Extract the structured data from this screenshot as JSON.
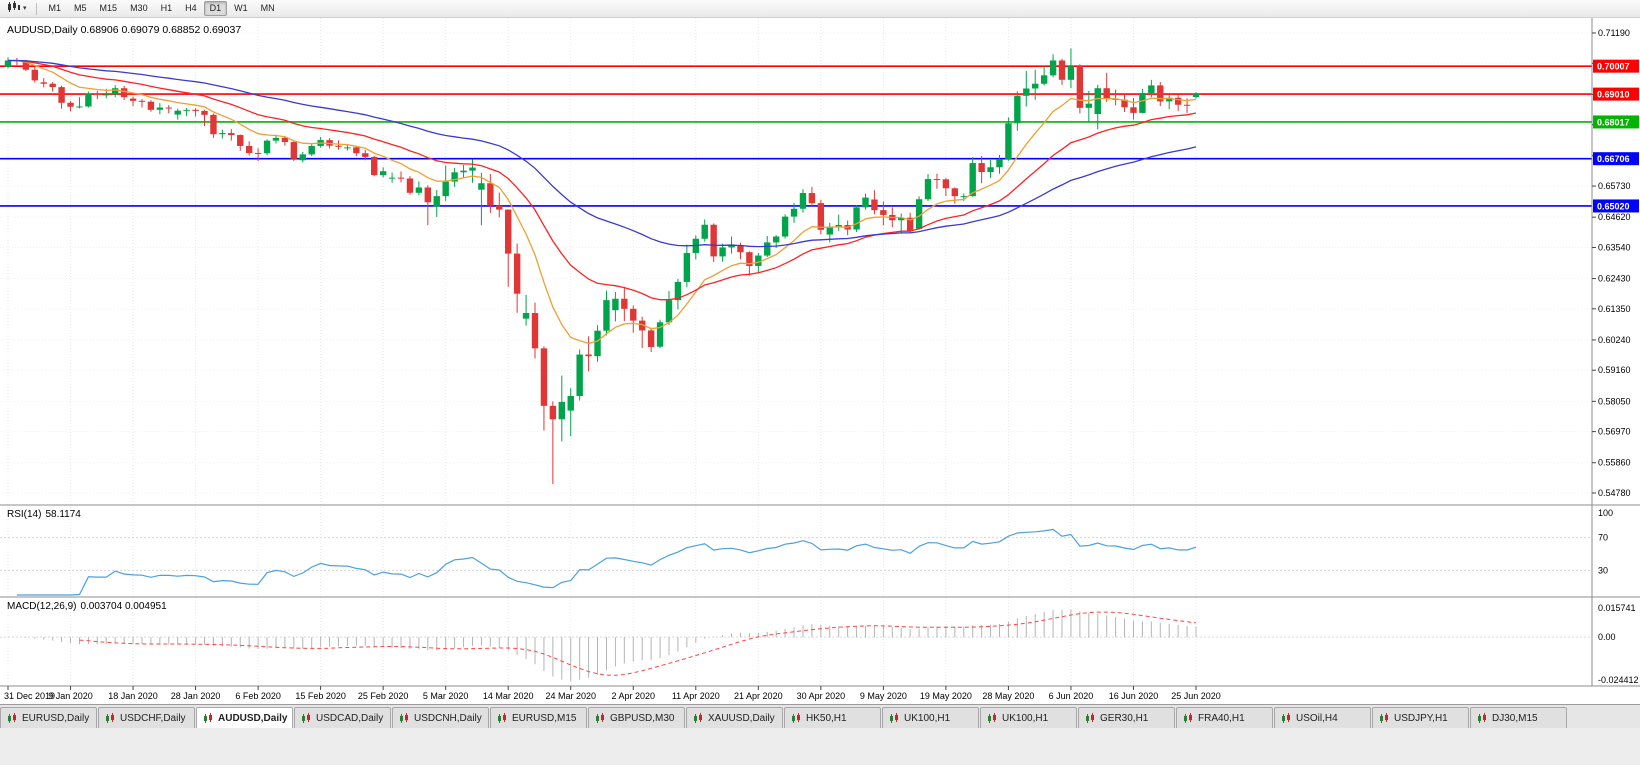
{
  "toolbar": {
    "timeframes": [
      "M1",
      "M5",
      "M15",
      "M30",
      "H1",
      "H4",
      "D1",
      "W1",
      "MN"
    ],
    "active_timeframe": "D1"
  },
  "chart_header": {
    "symbol": "AUDUSD,Daily",
    "ohlc": "0.68906 0.69079 0.68852 0.69037"
  },
  "indicators": {
    "rsi": {
      "name": "RSI(14)",
      "value": "58.1174",
      "period": 14,
      "axis_labels": [
        "100",
        "70",
        "30"
      ],
      "levels": [
        70,
        30
      ],
      "color": "#4ba1df"
    },
    "macd": {
      "name": "MACD(12,26,9)",
      "value": "0.003704 0.004951",
      "fast": 12,
      "slow": 26,
      "signal": 9,
      "axis_labels": [
        "0.015741",
        "0.00",
        "-0.024412"
      ],
      "hist_color": "#b4b4b4",
      "signal_color": "#ff4444"
    }
  },
  "chart_data": {
    "type": "candlestick",
    "title": "AUDUSD,Daily",
    "symbol": "AUDUSD",
    "timeframe": "Daily",
    "last_ohlc": {
      "open": 0.68906,
      "high": 0.69079,
      "low": 0.68852,
      "close": 0.69037
    },
    "colors": {
      "up": "#00a44a",
      "down": "#e03636",
      "grid": "#e8e8e8"
    },
    "price_ticks": [
      "0.71190",
      "0.70110",
      "0.69000",
      "0.67920",
      "0.66810",
      "0.65730",
      "0.64620",
      "0.63540",
      "0.62430",
      "0.61350",
      "0.60240",
      "0.59160",
      "0.58050",
      "0.56970",
      "0.55860",
      "0.54780"
    ],
    "levels": [
      {
        "price": "0.70007",
        "color": "#ff0000"
      },
      {
        "price": "0.69010",
        "color": "#ff0000"
      },
      {
        "price": "0.68017",
        "color": "#00b400"
      },
      {
        "price": "0.66706",
        "color": "#0000ff"
      },
      {
        "price": "0.65020",
        "color": "#0000ff"
      }
    ],
    "moving_averages": [
      {
        "name": "ma-fast",
        "period": 10,
        "color": "#efa032"
      },
      {
        "name": "ma-mid",
        "period": 24,
        "color": "#ff2222"
      },
      {
        "name": "ma-slow",
        "period": 52,
        "color": "#3a3ad0"
      }
    ],
    "date_labels": [
      "31 Dec 2019",
      "9 Jan 2020",
      "18 Jan 2020",
      "28 Jan 2020",
      "6 Feb 2020",
      "15 Feb 2020",
      "25 Feb 2020",
      "5 Mar 2020",
      "14 Mar 2020",
      "24 Mar 2020",
      "2 Apr 2020",
      "11 Apr 2020",
      "21 Apr 2020",
      "30 Apr 2020",
      "9 May 2020",
      "19 May 2020",
      "28 May 2020",
      "6 Jun 2020",
      "16 Jun 2020",
      "25 Jun 2020"
    ],
    "candles": [
      [
        0.6998,
        0.7032,
        0.6993,
        0.7021
      ],
      [
        0.7021,
        0.703,
        0.7004,
        0.7019
      ],
      [
        0.7019,
        0.7023,
        0.6983,
        0.6988
      ],
      [
        0.6988,
        0.7,
        0.6942,
        0.695
      ],
      [
        0.6943,
        0.6958,
        0.6925,
        0.6938
      ],
      [
        0.6938,
        0.6944,
        0.691,
        0.6926
      ],
      [
        0.6926,
        0.6931,
        0.6849,
        0.687
      ],
      [
        0.687,
        0.6876,
        0.684,
        0.6856
      ],
      [
        0.6856,
        0.689,
        0.685,
        0.6857
      ],
      [
        0.6857,
        0.691,
        0.6853,
        0.6903
      ],
      [
        0.6903,
        0.6913,
        0.6883,
        0.69
      ],
      [
        0.69,
        0.692,
        0.6886,
        0.69
      ],
      [
        0.69,
        0.6933,
        0.689,
        0.6922
      ],
      [
        0.6922,
        0.693,
        0.688,
        0.689
      ],
      [
        0.6885,
        0.6892,
        0.6858,
        0.6877
      ],
      [
        0.6877,
        0.6884,
        0.6853,
        0.6874
      ],
      [
        0.6874,
        0.6879,
        0.6838,
        0.6845
      ],
      [
        0.6845,
        0.6869,
        0.6829,
        0.6853
      ],
      [
        0.6853,
        0.6862,
        0.6832,
        0.6852
      ],
      [
        0.6828,
        0.6849,
        0.681,
        0.6842
      ],
      [
        0.6842,
        0.6852,
        0.6822,
        0.6845
      ],
      [
        0.6845,
        0.6851,
        0.6821,
        0.6841
      ],
      [
        0.6841,
        0.6845,
        0.6787,
        0.6827
      ],
      [
        0.6827,
        0.6832,
        0.6745,
        0.6758
      ],
      [
        0.6758,
        0.6774,
        0.6743,
        0.6762
      ],
      [
        0.6762,
        0.6776,
        0.6735,
        0.6755
      ],
      [
        0.6755,
        0.6757,
        0.6699,
        0.6716
      ],
      [
        0.6716,
        0.6733,
        0.6682,
        0.6691
      ],
      [
        0.6691,
        0.6708,
        0.6662,
        0.669
      ],
      [
        0.669,
        0.674,
        0.6683,
        0.6735
      ],
      [
        0.6735,
        0.6756,
        0.6725,
        0.6745
      ],
      [
        0.6745,
        0.6752,
        0.6717,
        0.673
      ],
      [
        0.673,
        0.6733,
        0.6662,
        0.667
      ],
      [
        0.6665,
        0.6695,
        0.6657,
        0.6686
      ],
      [
        0.6686,
        0.6722,
        0.668,
        0.6716
      ],
      [
        0.6716,
        0.6748,
        0.671,
        0.6737
      ],
      [
        0.6737,
        0.6744,
        0.6707,
        0.6717
      ],
      [
        0.6717,
        0.6736,
        0.6703,
        0.6713
      ],
      [
        0.671,
        0.6722,
        0.67,
        0.6711
      ],
      [
        0.6711,
        0.6716,
        0.668,
        0.669
      ],
      [
        0.669,
        0.6702,
        0.6665,
        0.6677
      ],
      [
        0.6677,
        0.668,
        0.6608,
        0.6612
      ],
      [
        0.6612,
        0.664,
        0.6604,
        0.6626
      ],
      [
        0.66,
        0.6621,
        0.6585,
        0.6603
      ],
      [
        0.6603,
        0.6625,
        0.6586,
        0.66
      ],
      [
        0.66,
        0.6608,
        0.6542,
        0.6549
      ],
      [
        0.6549,
        0.659,
        0.654,
        0.6568
      ],
      [
        0.6568,
        0.6576,
        0.6434,
        0.6515
      ],
      [
        0.65,
        0.6559,
        0.6463,
        0.6537
      ],
      [
        0.6537,
        0.6646,
        0.652,
        0.6589
      ],
      [
        0.6589,
        0.6638,
        0.657,
        0.6622
      ],
      [
        0.6622,
        0.6648,
        0.66,
        0.6628
      ],
      [
        0.6628,
        0.6668,
        0.6585,
        0.6639
      ],
      [
        0.656,
        0.662,
        0.6433,
        0.6583
      ],
      [
        0.6583,
        0.6616,
        0.6477,
        0.6503
      ],
      [
        0.6503,
        0.655,
        0.6461,
        0.6489
      ],
      [
        0.6489,
        0.649,
        0.6214,
        0.6332
      ],
      [
        0.6332,
        0.6368,
        0.6121,
        0.6189
      ],
      [
        0.61,
        0.6185,
        0.6075,
        0.612
      ],
      [
        0.612,
        0.6157,
        0.5958,
        0.5994
      ],
      [
        0.5994,
        0.6001,
        0.5701,
        0.5789
      ],
      [
        0.5789,
        0.5805,
        0.551,
        0.5741
      ],
      [
        0.5741,
        0.5897,
        0.5662,
        0.5803
      ],
      [
        0.5772,
        0.5852,
        0.568,
        0.5824
      ],
      [
        0.5824,
        0.599,
        0.5808,
        0.5972
      ],
      [
        0.5972,
        0.6037,
        0.5912,
        0.5966
      ],
      [
        0.5966,
        0.6077,
        0.5946,
        0.6057
      ],
      [
        0.6057,
        0.62,
        0.604,
        0.6166
      ],
      [
        0.613,
        0.6195,
        0.609,
        0.6171
      ],
      [
        0.6171,
        0.6214,
        0.6091,
        0.6135
      ],
      [
        0.6135,
        0.6147,
        0.605,
        0.6093
      ],
      [
        0.6093,
        0.6107,
        0.5995,
        0.6058
      ],
      [
        0.6058,
        0.6068,
        0.5981,
        0.5999
      ],
      [
        0.6,
        0.6096,
        0.5995,
        0.6087
      ],
      [
        0.6087,
        0.6199,
        0.6078,
        0.6166
      ],
      [
        0.6166,
        0.6242,
        0.6133,
        0.6231
      ],
      [
        0.6231,
        0.6364,
        0.6212,
        0.6334
      ],
      [
        0.6334,
        0.6397,
        0.6311,
        0.6385
      ],
      [
        0.6385,
        0.6454,
        0.6375,
        0.6435
      ],
      [
        0.6435,
        0.644,
        0.6302,
        0.6322
      ],
      [
        0.6322,
        0.6368,
        0.6303,
        0.6354
      ],
      [
        0.6354,
        0.6393,
        0.6332,
        0.6365
      ],
      [
        0.636,
        0.6371,
        0.6312,
        0.6337
      ],
      [
        0.6337,
        0.634,
        0.6254,
        0.6288
      ],
      [
        0.6288,
        0.6334,
        0.6263,
        0.6325
      ],
      [
        0.6325,
        0.6395,
        0.632,
        0.6372
      ],
      [
        0.6372,
        0.6398,
        0.6352,
        0.6393
      ],
      [
        0.6393,
        0.6472,
        0.6386,
        0.6464
      ],
      [
        0.6464,
        0.6513,
        0.6442,
        0.6492
      ],
      [
        0.6492,
        0.6562,
        0.6478,
        0.6548
      ],
      [
        0.6548,
        0.657,
        0.6501,
        0.6512
      ],
      [
        0.6512,
        0.6524,
        0.6401,
        0.6417
      ],
      [
        0.64,
        0.6442,
        0.6372,
        0.6428
      ],
      [
        0.6428,
        0.6471,
        0.6413,
        0.6434
      ],
      [
        0.6434,
        0.645,
        0.6398,
        0.6418
      ],
      [
        0.6418,
        0.6505,
        0.6409,
        0.6497
      ],
      [
        0.6497,
        0.6546,
        0.6489,
        0.6532
      ],
      [
        0.6525,
        0.6558,
        0.6472,
        0.6487
      ],
      [
        0.6487,
        0.6518,
        0.6433,
        0.647
      ],
      [
        0.647,
        0.6497,
        0.6426,
        0.6451
      ],
      [
        0.6451,
        0.6475,
        0.6403,
        0.646
      ],
      [
        0.646,
        0.6478,
        0.6406,
        0.6414
      ],
      [
        0.642,
        0.6536,
        0.6417,
        0.6526
      ],
      [
        0.6526,
        0.6616,
        0.652,
        0.6598
      ],
      [
        0.6598,
        0.6617,
        0.6563,
        0.6597
      ],
      [
        0.6597,
        0.6601,
        0.6538,
        0.6565
      ],
      [
        0.6565,
        0.6568,
        0.651,
        0.6537
      ],
      [
        0.6537,
        0.6547,
        0.652,
        0.6537
      ],
      [
        0.6537,
        0.6676,
        0.6535,
        0.6655
      ],
      [
        0.6655,
        0.668,
        0.6583,
        0.6623
      ],
      [
        0.6623,
        0.6666,
        0.6602,
        0.664
      ],
      [
        0.664,
        0.6684,
        0.6617,
        0.6667
      ],
      [
        0.6667,
        0.6818,
        0.6663,
        0.6797
      ],
      [
        0.6797,
        0.6911,
        0.677,
        0.6895
      ],
      [
        0.6895,
        0.6983,
        0.6857,
        0.6921
      ],
      [
        0.6921,
        0.6988,
        0.6881,
        0.6938
      ],
      [
        0.6938,
        0.7,
        0.6932,
        0.6968
      ],
      [
        0.6968,
        0.7043,
        0.6961,
        0.7021
      ],
      [
        0.7021,
        0.7027,
        0.6934,
        0.6952
      ],
      [
        0.6952,
        0.7064,
        0.6922,
        0.7001
      ],
      [
        0.7001,
        0.7007,
        0.6832,
        0.6852
      ],
      [
        0.6852,
        0.6912,
        0.6799,
        0.6867
      ],
      [
        0.683,
        0.6934,
        0.6775,
        0.6922
      ],
      [
        0.6922,
        0.6977,
        0.6873,
        0.6884
      ],
      [
        0.6884,
        0.6917,
        0.6861,
        0.6881
      ],
      [
        0.6881,
        0.6899,
        0.6837,
        0.6854
      ],
      [
        0.6854,
        0.6887,
        0.681,
        0.6834
      ],
      [
        0.6834,
        0.692,
        0.6832,
        0.6905
      ],
      [
        0.6905,
        0.6952,
        0.689,
        0.6932
      ],
      [
        0.6932,
        0.6944,
        0.6858,
        0.6875
      ],
      [
        0.6875,
        0.6897,
        0.6847,
        0.6888
      ],
      [
        0.6888,
        0.6898,
        0.6841,
        0.6863
      ],
      [
        0.6863,
        0.6886,
        0.6834,
        0.6862
      ],
      [
        0.68906,
        0.69079,
        0.68852,
        0.69037
      ]
    ]
  },
  "tabs": [
    {
      "label": "EURUSD,Daily",
      "active": false
    },
    {
      "label": "USDCHF,Daily",
      "active": false
    },
    {
      "label": "AUDUSD,Daily",
      "active": true
    },
    {
      "label": "USDCAD,Daily",
      "active": false
    },
    {
      "label": "USDCNH,Daily",
      "active": false
    },
    {
      "label": "EURUSD,M15",
      "active": false
    },
    {
      "label": "GBPUSD,M30",
      "active": false
    },
    {
      "label": "XAUUSD,Daily",
      "active": false
    },
    {
      "label": "HK50,H1",
      "active": false
    },
    {
      "label": "UK100,H1",
      "active": false
    },
    {
      "label": "UK100,H1",
      "active": false
    },
    {
      "label": "GER30,H1",
      "active": false
    },
    {
      "label": "FRA40,H1",
      "active": false
    },
    {
      "label": "USOil,H4",
      "active": false
    },
    {
      "label": "USDJPY,H1",
      "active": false
    },
    {
      "label": "DJ30,M15",
      "active": false
    }
  ]
}
